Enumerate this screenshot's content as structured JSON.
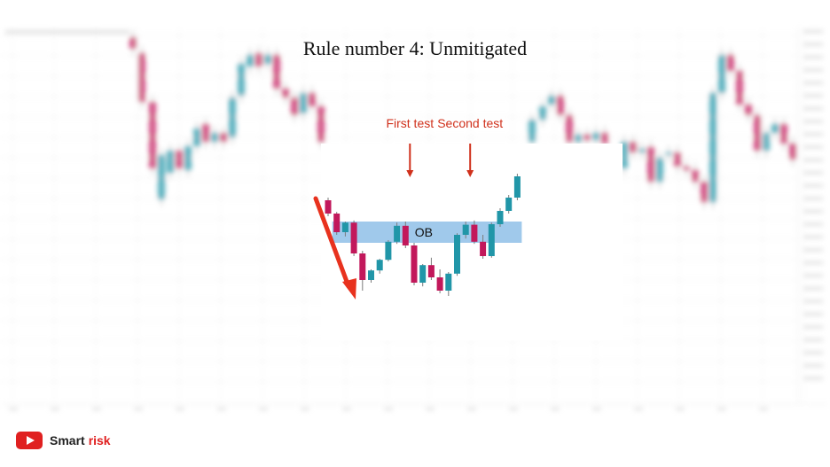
{
  "slide": {
    "title": "Rule number 4: Unmitigated"
  },
  "brand": {
    "name_part1": "Smart",
    "name_part2": "risk",
    "icon": "youtube-play-icon"
  },
  "colors": {
    "bull": "#2196a8",
    "bear": "#c2185b",
    "ob_zone": "#8fbfe8",
    "arrow": "#e8321e",
    "annotation": "#d0311c"
  },
  "chart_data": {
    "type": "candlestick",
    "title": "",
    "annotations": [
      {
        "label": "First test",
        "candle_index": 9,
        "kind": "down-arrow"
      },
      {
        "label": "Second test",
        "candle_index": 16,
        "kind": "down-arrow"
      },
      {
        "label": "OB",
        "kind": "zone-label"
      }
    ],
    "zone": {
      "label": "OB",
      "top": 150,
      "bottom": 110,
      "from_index": 1,
      "to_index": 22
    },
    "impulse_arrow": {
      "from_index": 0,
      "to_index": 2,
      "direction": "down"
    },
    "candles": [
      {
        "o": 190,
        "h": 195,
        "l": 160,
        "c": 165
      },
      {
        "o": 165,
        "h": 168,
        "l": 125,
        "c": 130
      },
      {
        "o": 130,
        "h": 150,
        "l": 122,
        "c": 148
      },
      {
        "o": 148,
        "h": 152,
        "l": 85,
        "c": 90
      },
      {
        "o": 90,
        "h": 95,
        "l": 20,
        "c": 40
      },
      {
        "o": 40,
        "h": 60,
        "l": 35,
        "c": 58
      },
      {
        "o": 58,
        "h": 80,
        "l": 52,
        "c": 78
      },
      {
        "o": 78,
        "h": 115,
        "l": 75,
        "c": 112
      },
      {
        "o": 112,
        "h": 148,
        "l": 108,
        "c": 142
      },
      {
        "o": 142,
        "h": 150,
        "l": 100,
        "c": 105
      },
      {
        "o": 105,
        "h": 110,
        "l": 30,
        "c": 35
      },
      {
        "o": 35,
        "h": 70,
        "l": 28,
        "c": 68
      },
      {
        "o": 68,
        "h": 82,
        "l": 40,
        "c": 45
      },
      {
        "o": 45,
        "h": 60,
        "l": 15,
        "c": 20
      },
      {
        "o": 20,
        "h": 55,
        "l": 10,
        "c": 52
      },
      {
        "o": 52,
        "h": 128,
        "l": 48,
        "c": 125
      },
      {
        "o": 125,
        "h": 150,
        "l": 118,
        "c": 144
      },
      {
        "o": 144,
        "h": 152,
        "l": 108,
        "c": 112
      },
      {
        "o": 112,
        "h": 125,
        "l": 80,
        "c": 85
      },
      {
        "o": 85,
        "h": 148,
        "l": 82,
        "c": 145
      },
      {
        "o": 145,
        "h": 175,
        "l": 140,
        "c": 170
      },
      {
        "o": 170,
        "h": 200,
        "l": 165,
        "c": 195
      },
      {
        "o": 195,
        "h": 240,
        "l": 190,
        "c": 235
      }
    ]
  }
}
